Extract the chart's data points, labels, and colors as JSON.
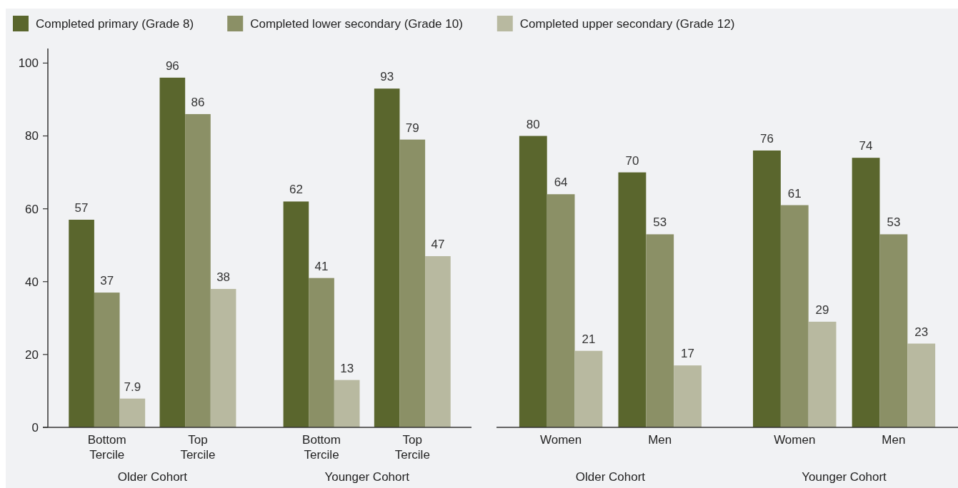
{
  "chart_data": [
    {
      "type": "bar",
      "categories": [
        "Bottom Tercile",
        "Top Tercile",
        "Bottom Tercile",
        "Top Tercile"
      ],
      "series": [
        {
          "name": "Completed primary (Grade 8)",
          "color": "#5a662d",
          "values": [
            57,
            96,
            62,
            93
          ]
        },
        {
          "name": "Completed lower secondary (Grade 10)",
          "color": "#8b9066",
          "values": [
            37,
            86,
            41,
            79
          ]
        },
        {
          "name": "Completed upper secondary (Grade 12)",
          "color": "#b8b9a0",
          "values": [
            7.9,
            38,
            13,
            47
          ]
        }
      ],
      "ylim": [
        0,
        104
      ],
      "yticks": [
        0,
        20,
        40,
        60,
        80,
        100
      ],
      "data_labels": true,
      "legend": "top",
      "grid": false,
      "annotations": [
        "Older Cohort",
        "Younger Cohort"
      ]
    },
    {
      "type": "bar",
      "categories": [
        "Women",
        "Men",
        "Women",
        "Men"
      ],
      "series": [
        {
          "color": "#5a662d",
          "values": [
            80,
            70,
            76,
            74
          ]
        },
        {
          "color": "#8b9066",
          "values": [
            64,
            53,
            61,
            53
          ]
        },
        {
          "color": "#b8b9a0",
          "values": [
            21,
            17,
            29,
            23
          ]
        }
      ],
      "tick_labels": "x",
      "data_labels": true,
      "legend": false,
      "grid": false,
      "annotations": [
        "Older Cohort",
        "Younger Cohort"
      ]
    }
  ]
}
